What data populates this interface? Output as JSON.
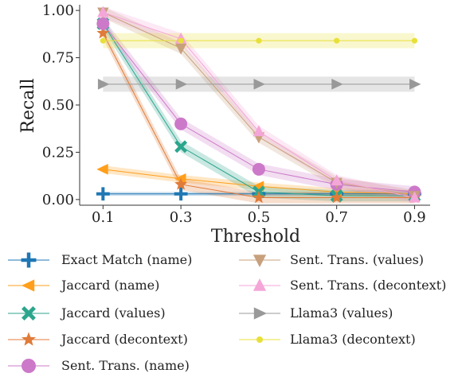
{
  "chart_data": {
    "type": "line",
    "xlabel": "Threshold",
    "ylabel": "Recall",
    "x": [
      0.1,
      0.3,
      0.5,
      0.7,
      0.9
    ],
    "x_ticks": [
      "0.1",
      "0.3",
      "0.5",
      "0.7",
      "0.9"
    ],
    "y_ticks": [
      "0.00",
      "0.25",
      "0.50",
      "0.75",
      "1.00"
    ],
    "xlim": [
      0.04,
      0.94
    ],
    "ylim": [
      -0.03,
      1.03
    ],
    "grid": false,
    "legend_position": "bottom",
    "series": [
      {
        "name": "Exact Match (name)",
        "color": "#1f77b4",
        "marker": "plus",
        "values": [
          0.03,
          0.03,
          0.03,
          0.03,
          0.03
        ],
        "band": 0.01
      },
      {
        "name": "Jaccard (name)",
        "color": "#ff9f1c",
        "marker": "triangle-left",
        "values": [
          0.16,
          0.11,
          0.07,
          0.04,
          0.03
        ],
        "band": 0.02
      },
      {
        "name": "Jaccard (values)",
        "color": "#2ca58d",
        "marker": "x",
        "values": [
          0.93,
          0.28,
          0.04,
          0.02,
          0.02
        ],
        "band": 0.03
      },
      {
        "name": "Jaccard (decontext)",
        "color": "#e07b39",
        "marker": "star",
        "values": [
          0.88,
          0.08,
          0.01,
          0.01,
          0.01
        ],
        "band": 0.03
      },
      {
        "name": "Sent. Trans. (name)",
        "color": "#cc79c9",
        "marker": "circle",
        "values": [
          0.93,
          0.4,
          0.16,
          0.08,
          0.04
        ],
        "band": 0.03
      },
      {
        "name": "Sent. Trans. (values)",
        "color": "#c8a07c",
        "marker": "triangle-down",
        "values": [
          0.99,
          0.8,
          0.33,
          0.09,
          0.02
        ],
        "band": 0.03
      },
      {
        "name": "Sent. Trans. (decontext)",
        "color": "#f4a6d8",
        "marker": "triangle-up",
        "values": [
          0.99,
          0.85,
          0.36,
          0.1,
          0.01
        ],
        "band": 0.03
      },
      {
        "name": "Llama3 (values)",
        "color": "#999999",
        "marker": "triangle-right",
        "values": [
          0.61,
          0.61,
          0.61,
          0.61,
          0.61
        ],
        "band": 0.04
      },
      {
        "name": "Llama3 (decontext)",
        "color": "#e8e03a",
        "marker": "dot",
        "values": [
          0.84,
          0.84,
          0.84,
          0.84,
          0.84
        ],
        "band": 0.04
      }
    ]
  }
}
